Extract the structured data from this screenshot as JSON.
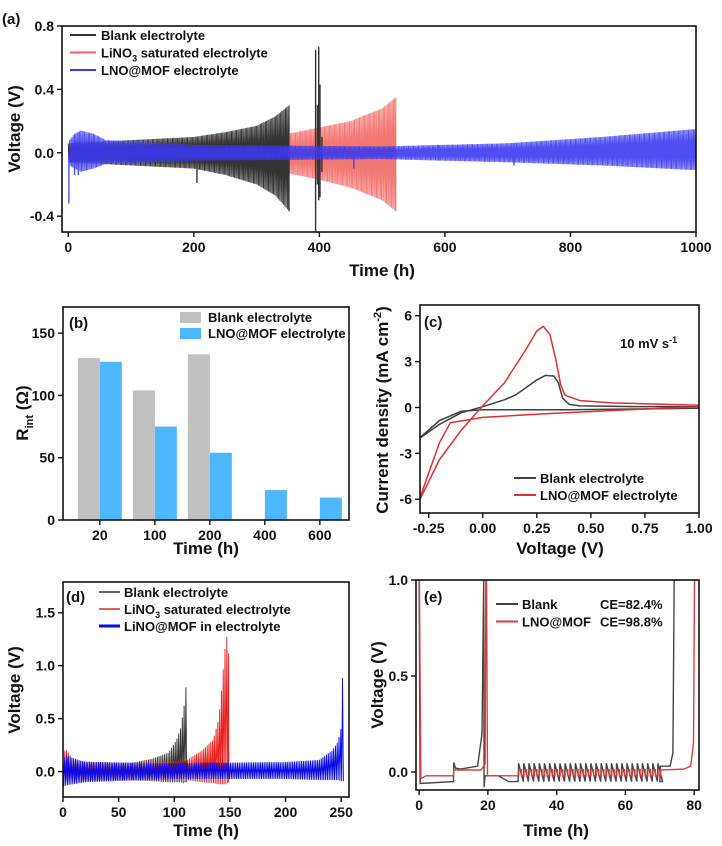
{
  "chart_data": [
    {
      "panel": "(a)",
      "type": "line",
      "xlabel": "Time (h)",
      "ylabel": "Voltage (V)",
      "xlim": [
        -10,
        1000
      ],
      "ylim": [
        -0.5,
        0.8
      ],
      "xticks": [
        0,
        200,
        400,
        600,
        800,
        1000
      ],
      "xtick_labels": [
        "0",
        "200",
        "400",
        "600",
        "800",
        "1000"
      ],
      "yticks": [
        -0.4,
        0.0,
        0.4,
        0.8
      ],
      "ytick_labels": [
        "-0.4",
        "0.0",
        "0.4",
        "0.8"
      ],
      "legend": "top-left",
      "series": [
        {
          "label_main": "LiNO",
          "label_sub": "3",
          "label_tail": " saturated electrolyte",
          "color": "#f0605c",
          "step": 2,
          "t": [
            0,
            100,
            200,
            300,
            350,
            400,
            450,
            500,
            522
          ],
          "upper": [
            0.05,
            0.06,
            0.07,
            0.1,
            0.12,
            0.16,
            0.2,
            0.28,
            0.35
          ],
          "lower": [
            -0.05,
            -0.06,
            -0.07,
            -0.1,
            -0.13,
            -0.17,
            -0.22,
            -0.3,
            -0.37
          ],
          "spikes": []
        },
        {
          "label_main": "Blank electrolyte",
          "color": "#333333",
          "step": 2,
          "t": [
            0,
            100,
            200,
            250,
            300,
            330,
            352
          ],
          "upper": [
            0.06,
            0.08,
            0.1,
            0.13,
            0.17,
            0.23,
            0.3
          ],
          "lower": [
            -0.06,
            -0.08,
            -0.1,
            -0.14,
            -0.2,
            -0.27,
            -0.37
          ],
          "spikes": [
            [
              205,
              0.0,
              -0.19
            ],
            [
              394,
              0.65,
              -0.5
            ],
            [
              397,
              0.3,
              -0.2
            ],
            [
              399,
              0.67,
              -0.3
            ],
            [
              401,
              0.43,
              -0.28
            ],
            [
              404,
              0.1,
              -0.12
            ]
          ]
        },
        {
          "label_main": "LNO@MOF electrolyte",
          "color": "#3a3af0",
          "step": 2,
          "t": [
            2,
            10,
            20,
            40,
            60,
            200,
            500,
            700,
            850,
            1000
          ],
          "upper": [
            0.08,
            0.12,
            0.14,
            0.12,
            0.08,
            0.05,
            0.04,
            0.06,
            0.1,
            0.15
          ],
          "lower": [
            -0.08,
            -0.1,
            -0.12,
            -0.1,
            -0.07,
            -0.05,
            -0.04,
            -0.06,
            -0.08,
            -0.11
          ],
          "spikes": [
            [
              1,
              0.0,
              -0.32
            ],
            [
              10,
              0.0,
              -0.14
            ],
            [
              16,
              0.0,
              -0.14
            ],
            [
              455,
              0.0,
              -0.1
            ],
            [
              590,
              0.05,
              -0.05
            ],
            [
              710,
              0.06,
              -0.08
            ]
          ]
        }
      ]
    },
    {
      "panel": "(b)",
      "type": "bar",
      "xlabel": "Time (h)",
      "ylabel_main": "R",
      "ylabel_sub": "int",
      "ylabel_tail": " (Ω)",
      "categories": [
        "20",
        "100",
        "200",
        "400",
        "600"
      ],
      "ylim": [
        0,
        171
      ],
      "yticks": [
        0,
        50,
        100,
        150
      ],
      "ytick_labels": [
        "0",
        "50",
        "100",
        "150"
      ],
      "legend": "top-right",
      "series": [
        {
          "name": "Blank electrolyte",
          "color": "#c0c0c0",
          "values": [
            130,
            104,
            133,
            null,
            null
          ]
        },
        {
          "name": "LNO@MOF electrolyte",
          "color": "#4db8ff",
          "values": [
            127,
            75,
            54,
            24,
            18
          ]
        }
      ]
    },
    {
      "panel": "(c)",
      "type": "line",
      "xlabel": "Voltage (V)",
      "ylabel_main": "Current density (mA cm",
      "ylabel_sup": "-2",
      "ylabel_tail": ")",
      "xlim": [
        -0.29,
        1.0
      ],
      "ylim": [
        -6.9,
        6.7
      ],
      "xticks": [
        -0.25,
        0,
        0.25,
        0.5,
        0.75,
        1.0
      ],
      "xtick_labels": [
        "-0.25",
        "0.00",
        "0.25",
        "0.50",
        "0.75",
        "1.00"
      ],
      "yticks": [
        -6,
        -3,
        0,
        3,
        6
      ],
      "ytick_labels": [
        "-6",
        "-3",
        "0",
        "3",
        "6"
      ],
      "annotation_main": "10 mV s",
      "annotation_sup": "-1",
      "legend": "bottom-right",
      "series": [
        {
          "name": "Blank electrolyte",
          "color": "#404040",
          "x": [
            -0.3,
            -0.2,
            -0.1,
            0,
            0.1,
            0.15,
            0.2,
            0.25,
            0.29,
            0.33,
            0.35,
            0.37,
            0.4,
            0.45,
            0.7,
            1.0,
            1.0,
            0.7,
            0.4,
            0.1,
            0,
            -0.1,
            -0.2,
            -0.3
          ],
          "y": [
            -2.1,
            -1.1,
            -0.35,
            0.05,
            0.5,
            0.8,
            1.3,
            1.8,
            2.1,
            2.05,
            1.6,
            0.6,
            0.2,
            0.1,
            0.06,
            0.05,
            -0.05,
            -0.1,
            -0.15,
            -0.15,
            -0.15,
            -0.25,
            -0.85,
            -2.1
          ]
        },
        {
          "name": "LNO@MOF electrolyte",
          "color": "#e03030",
          "x": [
            -0.3,
            -0.2,
            -0.1,
            0,
            0.1,
            0.2,
            0.25,
            0.28,
            0.31,
            0.34,
            0.36,
            0.38,
            0.45,
            0.6,
            1.0,
            1.0,
            0.6,
            0.3,
            0,
            -0.15,
            -0.2,
            -0.3
          ],
          "y": [
            -6.3,
            -3.4,
            -1.5,
            0.1,
            1.6,
            3.8,
            5.0,
            5.3,
            4.8,
            3.0,
            1.5,
            0.8,
            0.45,
            0.3,
            0.15,
            0.05,
            -0.2,
            -0.4,
            -0.65,
            -1.0,
            -2.3,
            -6.3
          ]
        }
      ]
    },
    {
      "panel": "(d)",
      "type": "line",
      "xlabel": "Time (h)",
      "ylabel": "Voltage (V)",
      "xlim": [
        0,
        257
      ],
      "ylim": [
        -0.24,
        1.79
      ],
      "xticks": [
        0,
        50,
        100,
        150,
        200,
        250
      ],
      "xtick_labels": [
        "0",
        "50",
        "100",
        "150",
        "200",
        "250"
      ],
      "yticks": [
        0,
        0.5,
        1.0,
        1.5
      ],
      "ytick_labels": [
        "0.0",
        "0.5",
        "1.0",
        "1.5"
      ],
      "legend": "top-left",
      "series": [
        {
          "label_main": "Blank electrolyte",
          "color": "#333333",
          "step": 1.6,
          "t": [
            0,
            60,
            80,
            95,
            102,
            106,
            108,
            110,
            111.5
          ],
          "upper": [
            0.1,
            0.08,
            0.12,
            0.18,
            0.3,
            0.42,
            0.57,
            0.7,
            1.06
          ],
          "lower": [
            -0.08,
            -0.08,
            -0.09,
            -0.1,
            -0.1,
            -0.1,
            -0.11,
            -0.1,
            -0.1
          ],
          "spikes": []
        },
        {
          "label_main": "LiNO",
          "label_sub": "3",
          "label_tail": " saturated electrolyte",
          "color": "#e8201f",
          "step": 1.6,
          "t": [
            0,
            2,
            10,
            50,
            110,
            125,
            135,
            140,
            143,
            145,
            147,
            149
          ],
          "upper": [
            0.1,
            0.22,
            0.1,
            0.08,
            0.1,
            0.2,
            0.3,
            0.5,
            0.83,
            1.1,
            1.29,
            1.1
          ],
          "lower": [
            -0.1,
            -0.1,
            -0.1,
            -0.08,
            -0.08,
            -0.1,
            -0.11,
            -0.12,
            -0.12,
            -0.12,
            -0.12,
            -0.1
          ],
          "spikes": []
        },
        {
          "label_main": "LiNO@MOF in electrolyte",
          "color": "#0a0ae6",
          "step": 1.6,
          "t": [
            0,
            3,
            20,
            100,
            200,
            230,
            242,
            247,
            250,
            251.5,
            252.5
          ],
          "upper": [
            0.12,
            0.15,
            0.09,
            0.08,
            0.09,
            0.11,
            0.2,
            0.28,
            0.42,
            1.0,
            1.5
          ],
          "lower": [
            -0.14,
            -0.13,
            -0.1,
            -0.07,
            -0.07,
            -0.08,
            -0.08,
            -0.08,
            -0.09,
            -0.09,
            -0.09
          ],
          "spikes": []
        }
      ]
    },
    {
      "panel": "(e)",
      "type": "line",
      "xlabel": "Time (h)",
      "ylabel": "Voltage (V)",
      "xlim": [
        -0.9,
        81.4
      ],
      "ylim": [
        -0.094,
        1.0
      ],
      "xticks": [
        0,
        20,
        40,
        60,
        80
      ],
      "xtick_labels": [
        "0",
        "20",
        "40",
        "60",
        "80"
      ],
      "yticks": [
        0,
        0.5,
        1.0
      ],
      "ytick_labels": [
        "0.0",
        "0.5",
        "1.0"
      ],
      "legend": "top-right",
      "series": [
        {
          "name": "Blank",
          "ce": "CE=82.4%",
          "color": "#444444",
          "x": [
            0,
            0.3,
            10,
            10.1,
            10.6,
            12,
            17,
            18.3,
            18.8,
            18.9,
            19.2,
            23,
            26,
            28.8
          ],
          "y": [
            1.0,
            -0.06,
            -0.05,
            0.05,
            0.02,
            0.015,
            0.03,
            0.2,
            1.0,
            -0.08,
            -0.02,
            -0.02,
            -0.05,
            -0.05
          ],
          "oscillation": {
            "from": 28.8,
            "to": 70,
            "period": 1.5,
            "high": 0.045,
            "low": -0.05
          },
          "x2": [
            70,
            70.2,
            73,
            73.8,
            74.2
          ],
          "y2": [
            -0.05,
            0.03,
            0.03,
            0.1,
            1.0
          ]
        },
        {
          "name": "LNO@MOF",
          "ce": "CE=98.8%",
          "color": "#e03a3a",
          "x": [
            0.1,
            0.5,
            2,
            10,
            10.1,
            18,
            19.2,
            19.4,
            19.6,
            19.9,
            29
          ],
          "y": [
            1.0,
            -0.035,
            -0.02,
            -0.02,
            0.01,
            0.01,
            0.04,
            1.0,
            1.0,
            -0.02,
            -0.02
          ],
          "oscillation": {
            "from": 29,
            "to": 70,
            "period": 1.5,
            "high": 0.012,
            "low": -0.02,
            "square": true
          },
          "x2": [
            70,
            70.1,
            77,
            79,
            79.8,
            80.1
          ],
          "y2": [
            -0.02,
            0.01,
            0.015,
            0.03,
            0.15,
            1.0
          ]
        }
      ]
    }
  ]
}
